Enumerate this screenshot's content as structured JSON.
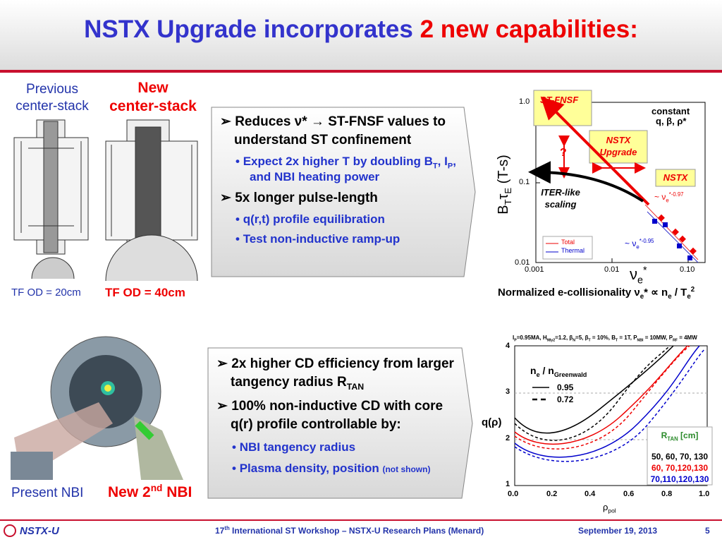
{
  "title": {
    "main": "NSTX Upgrade incorporates ",
    "highlight": "2 new capabilities:"
  },
  "centerstack": {
    "previous": [
      "Previous",
      "center-stack"
    ],
    "new": [
      "New",
      "center-stack"
    ],
    "tf_previous": "TF OD = 20cm",
    "tf_new": "TF OD = 40cm"
  },
  "box1": {
    "bullets": [
      {
        "level": 1,
        "text": [
          "Reduces ν* → ST-FNSF values to understand ST confinement"
        ]
      },
      {
        "level": 2,
        "text": [
          "Expect 2x higher T by doubling B",
          {
            "sub": "T"
          },
          ", I",
          {
            "sub": "P"
          },
          ", and NBI heating power"
        ]
      },
      {
        "level": 1,
        "text": [
          "5x longer pulse-length"
        ]
      },
      {
        "level": 2,
        "text": [
          "q(r,t) profile equilibration"
        ]
      },
      {
        "level": 2,
        "text": [
          "Test non-inductive ramp-up"
        ]
      }
    ]
  },
  "plot1": {
    "st_fnsf": "ST-FNSF",
    "constant": "constant",
    "constant_params": "q, β, ρ*",
    "nstx_upgrade": [
      "NSTX",
      "Upgrade"
    ],
    "nstx": "NSTX",
    "question": "?",
    "iter": [
      "ITER-like",
      "scaling"
    ],
    "fit1": [
      "~ ν",
      {
        "sub": "e"
      },
      {
        "sup": "*-0.97"
      }
    ],
    "fit2": [
      "~ ν",
      {
        "sub": "e"
      },
      {
        "sup": "*-0.95"
      }
    ],
    "legend": [
      "Total",
      "Thermal"
    ],
    "yticks": [
      "1.0",
      "0.1",
      "0.01"
    ],
    "xticks": [
      "0.001",
      "0.01",
      "0.10"
    ],
    "ylabel": [
      "B",
      {
        "sub": "T"
      },
      "τ",
      {
        "sub": "E"
      },
      " (T-s)"
    ],
    "xlabel": [
      "ν",
      {
        "sub": "e"
      },
      {
        "sup": "*"
      }
    ],
    "caption": [
      "Normalized e-collisionality ν",
      {
        "sub": "e"
      },
      "* ∝ n",
      {
        "sub": "e"
      },
      " / T",
      {
        "sub": "e"
      },
      {
        "sup": "2"
      }
    ]
  },
  "nbi": {
    "present": "Present NBI",
    "new": [
      "New 2",
      {
        "sup": "nd"
      },
      " NBI"
    ]
  },
  "box2": {
    "bullets": [
      {
        "level": 1,
        "text": [
          "2x higher CD efficiency from larger tangency radius R",
          {
            "sub": "TAN"
          }
        ]
      },
      {
        "level": 1,
        "text": [
          "100% non-inductive CD with core q(r) profile controllable by:"
        ]
      },
      {
        "level": 2,
        "text": [
          "NBI tangency radius"
        ]
      },
      {
        "level": 2,
        "text": [
          "Plasma density, position ",
          {
            "small": "(not shown)"
          }
        ]
      }
    ]
  },
  "plot2": {
    "header": [
      "I",
      {
        "sub": "P"
      },
      "=0.95MA,  H",
      {
        "sub": "98y2"
      },
      "=1.2, β",
      {
        "sub": "N"
      },
      "=5, β",
      {
        "sub": "T"
      },
      " = 10%, B",
      {
        "sub": "T"
      },
      " = 1T, P",
      {
        "sub": "NBI"
      },
      " = 10MW, P",
      {
        "sub": "RF"
      },
      " = 4MW"
    ],
    "legend_title": [
      "n",
      {
        "sub": "e"
      },
      " / n",
      {
        "sub": "Greenwald"
      }
    ],
    "legend": [
      "0.95",
      "0.72"
    ],
    "ylabel": [
      "q(ρ)"
    ],
    "xlabel": [
      "ρ",
      {
        "sub": "pol"
      }
    ],
    "yticks": [
      "4",
      "3",
      "2",
      "1"
    ],
    "xticks": [
      "0.0",
      "0.2",
      "0.4",
      "0.6",
      "0.8",
      "1.0"
    ],
    "rtan_title": [
      "R",
      {
        "sub": "TAN"
      },
      " [cm]"
    ],
    "rtan": [
      "50,  60, 70, 130",
      "60,  70,120,130",
      "70,110,120,130"
    ]
  },
  "footer": {
    "logo": "NSTX-U",
    "center": [
      "17",
      {
        "sup": "th"
      },
      " International ST Workshop –  NSTX-U Research Plans (Menard)"
    ],
    "date": "September 19, 2013",
    "page": "5"
  }
}
